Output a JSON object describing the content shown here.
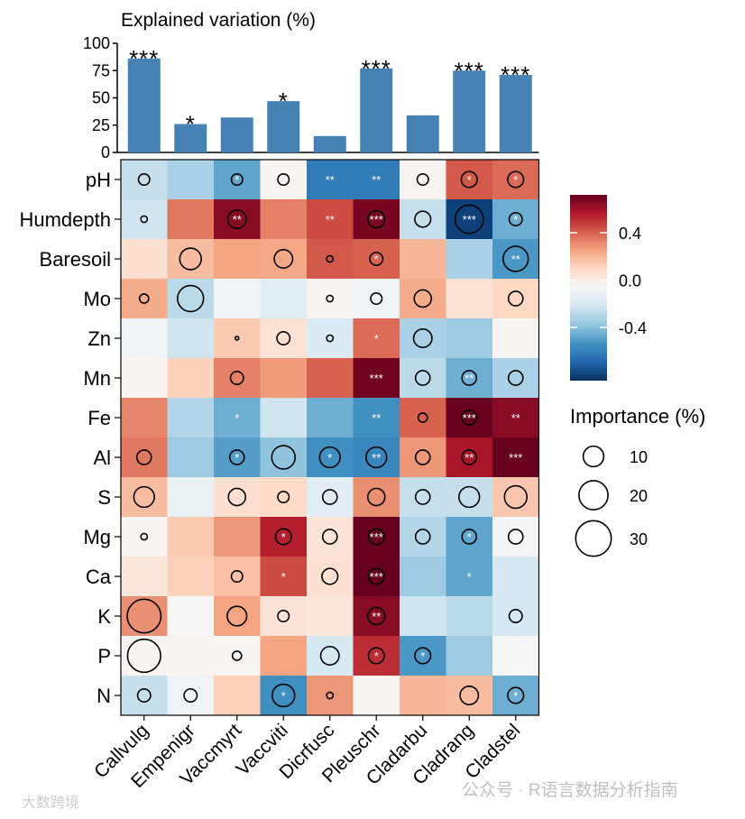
{
  "chart_data": [
    {
      "type": "bar",
      "title": "Explained variation (%)",
      "ylim": [
        0,
        100
      ],
      "yticks": [
        "0",
        "25",
        "50",
        "75",
        "100"
      ],
      "categories": [
        "Callvulg",
        "Empenigr",
        "Vaccmyrt",
        "Vaccviti",
        "Dicrfusc",
        "Pleuschr",
        "Cladarbu",
        "Cladrang",
        "Cladstel"
      ],
      "values": [
        86,
        26,
        32,
        47,
        15,
        77,
        34,
        75,
        71
      ],
      "significance": [
        "***",
        "*",
        "",
        "*",
        "",
        "***",
        "",
        "***",
        "***"
      ],
      "bar_color": "#4682B4"
    },
    {
      "type": "heatmap",
      "rows": [
        "pH",
        "Humdepth",
        "Baresoil",
        "Mo",
        "Zn",
        "Mn",
        "Fe",
        "Al",
        "S",
        "Mg",
        "Ca",
        "K",
        "P",
        "N"
      ],
      "columns": [
        "Callvulg",
        "Empenigr",
        "Vaccmyrt",
        "Vaccviti",
        "Dicrfusc",
        "Pleuschr",
        "Cladarbu",
        "Cladrang",
        "Cladstel"
      ],
      "correlation": [
        [
          -0.25,
          -0.32,
          -0.48,
          -0.05,
          -0.62,
          -0.62,
          -0.05,
          0.42,
          0.38
        ],
        [
          -0.22,
          0.35,
          0.65,
          0.33,
          0.45,
          0.68,
          -0.25,
          -0.8,
          -0.45
        ],
        [
          0.06,
          0.18,
          0.25,
          0.24,
          0.42,
          0.4,
          0.2,
          -0.32,
          -0.52
        ],
        [
          0.23,
          -0.28,
          -0.1,
          -0.15,
          -0.05,
          -0.1,
          0.23,
          0.05,
          0.1
        ],
        [
          -0.1,
          -0.22,
          0.14,
          0.05,
          -0.18,
          0.38,
          -0.32,
          -0.35,
          -0.05
        ],
        [
          -0.05,
          0.12,
          0.33,
          0.27,
          0.4,
          0.7,
          -0.28,
          -0.45,
          -0.32
        ],
        [
          0.32,
          -0.3,
          -0.45,
          -0.22,
          -0.45,
          -0.55,
          0.4,
          0.72,
          0.65
        ],
        [
          0.35,
          -0.35,
          -0.5,
          -0.38,
          -0.55,
          -0.58,
          0.28,
          0.58,
          0.75
        ],
        [
          0.18,
          -0.12,
          0.07,
          0.09,
          -0.15,
          0.3,
          -0.25,
          -0.25,
          0.15
        ],
        [
          -0.05,
          0.14,
          0.28,
          0.55,
          0.04,
          0.72,
          -0.3,
          -0.48,
          -0.08
        ],
        [
          0.03,
          0.12,
          0.17,
          0.45,
          0.06,
          0.72,
          -0.35,
          -0.48,
          -0.2
        ],
        [
          0.3,
          -0.07,
          0.25,
          0.04,
          0.03,
          0.65,
          -0.22,
          -0.28,
          -0.2
        ],
        [
          -0.05,
          -0.05,
          -0.05,
          0.25,
          -0.2,
          0.52,
          -0.52,
          -0.35,
          -0.07
        ],
        [
          -0.25,
          -0.1,
          0.12,
          -0.55,
          0.28,
          -0.05,
          0.2,
          0.18,
          -0.45
        ]
      ],
      "importance": [
        [
          3,
          0,
          3,
          3,
          0,
          0,
          3,
          6,
          6
        ],
        [
          1,
          0,
          8,
          0,
          0,
          7,
          6,
          19,
          4
        ],
        [
          0,
          11,
          0,
          8,
          1,
          4,
          0,
          0,
          15
        ],
        [
          2,
          16,
          0,
          0,
          1,
          3,
          7,
          0,
          5
        ],
        [
          0,
          0,
          0.3,
          4,
          1,
          0,
          8,
          0,
          0
        ],
        [
          0,
          0,
          4,
          0,
          0,
          0,
          5,
          5,
          5
        ],
        [
          0,
          0,
          0,
          0,
          0,
          0,
          2,
          5,
          0
        ],
        [
          5,
          0,
          5,
          13,
          10,
          10,
          5,
          5,
          0
        ],
        [
          10,
          0,
          7,
          3,
          5,
          7,
          5,
          10,
          12
        ],
        [
          1,
          0,
          0,
          6,
          5,
          6,
          5,
          5,
          5
        ],
        [
          0,
          0,
          3,
          0,
          6,
          6,
          0,
          0,
          0
        ],
        [
          27,
          0,
          9,
          3,
          0,
          7,
          0,
          0,
          4
        ],
        [
          26,
          0,
          2,
          0,
          8,
          6,
          6,
          0,
          0
        ],
        [
          4,
          4,
          0,
          12,
          1,
          0,
          0,
          8,
          6
        ]
      ],
      "significance": [
        [
          "",
          "",
          "*",
          "",
          "**",
          "**",
          "",
          "*",
          "*"
        ],
        [
          "",
          "",
          "**",
          "",
          "**",
          "***",
          "",
          "***",
          "*"
        ],
        [
          "",
          "",
          "",
          "",
          "",
          "*",
          "",
          "",
          "**"
        ],
        [
          "",
          "",
          "",
          "",
          "",
          "",
          "",
          "",
          ""
        ],
        [
          "",
          "",
          "",
          "",
          "",
          "*",
          "",
          "",
          ""
        ],
        [
          "",
          "",
          "",
          "",
          "",
          "***",
          "",
          "**",
          ""
        ],
        [
          "",
          "",
          "*",
          "",
          "",
          "**",
          "",
          "***",
          "**"
        ],
        [
          "",
          "",
          "*",
          "",
          "*",
          "**",
          "",
          "**",
          "***"
        ],
        [
          "",
          "",
          "",
          "",
          "",
          "",
          "",
          "",
          ""
        ],
        [
          "",
          "",
          "",
          "*",
          "",
          "***",
          "",
          "*",
          ""
        ],
        [
          "",
          "",
          "",
          "*",
          "",
          "***",
          "",
          "*",
          ""
        ],
        [
          "",
          "",
          "",
          "",
          "",
          "**",
          "",
          "",
          ""
        ],
        [
          "",
          "",
          "",
          "",
          "",
          "*",
          "*",
          "",
          ""
        ],
        [
          "",
          "",
          "",
          "*",
          "",
          "",
          "",
          "",
          "*"
        ]
      ],
      "colorbar": {
        "ticks": [
          {
            "value": 0.4,
            "label": "0.4"
          },
          {
            "value": 0.0,
            "label": "0.0"
          },
          {
            "value": -0.4,
            "label": "-0.4"
          }
        ],
        "range": [
          -0.85,
          0.72
        ],
        "stops": [
          "#053061",
          "#2166AC",
          "#4393C3",
          "#92C5DE",
          "#D1E5F0",
          "#F7F7F7",
          "#FDDBC7",
          "#F4A582",
          "#D6604D",
          "#B2182B",
          "#67001F"
        ]
      },
      "size_legend": {
        "title": "Importance (%)",
        "values": [
          10,
          20,
          30
        ],
        "labels": [
          "10",
          "20",
          "30"
        ]
      }
    }
  ],
  "watermark": {
    "left": "大数跨境",
    "right": "公众号 · R语言数据分析指南"
  }
}
